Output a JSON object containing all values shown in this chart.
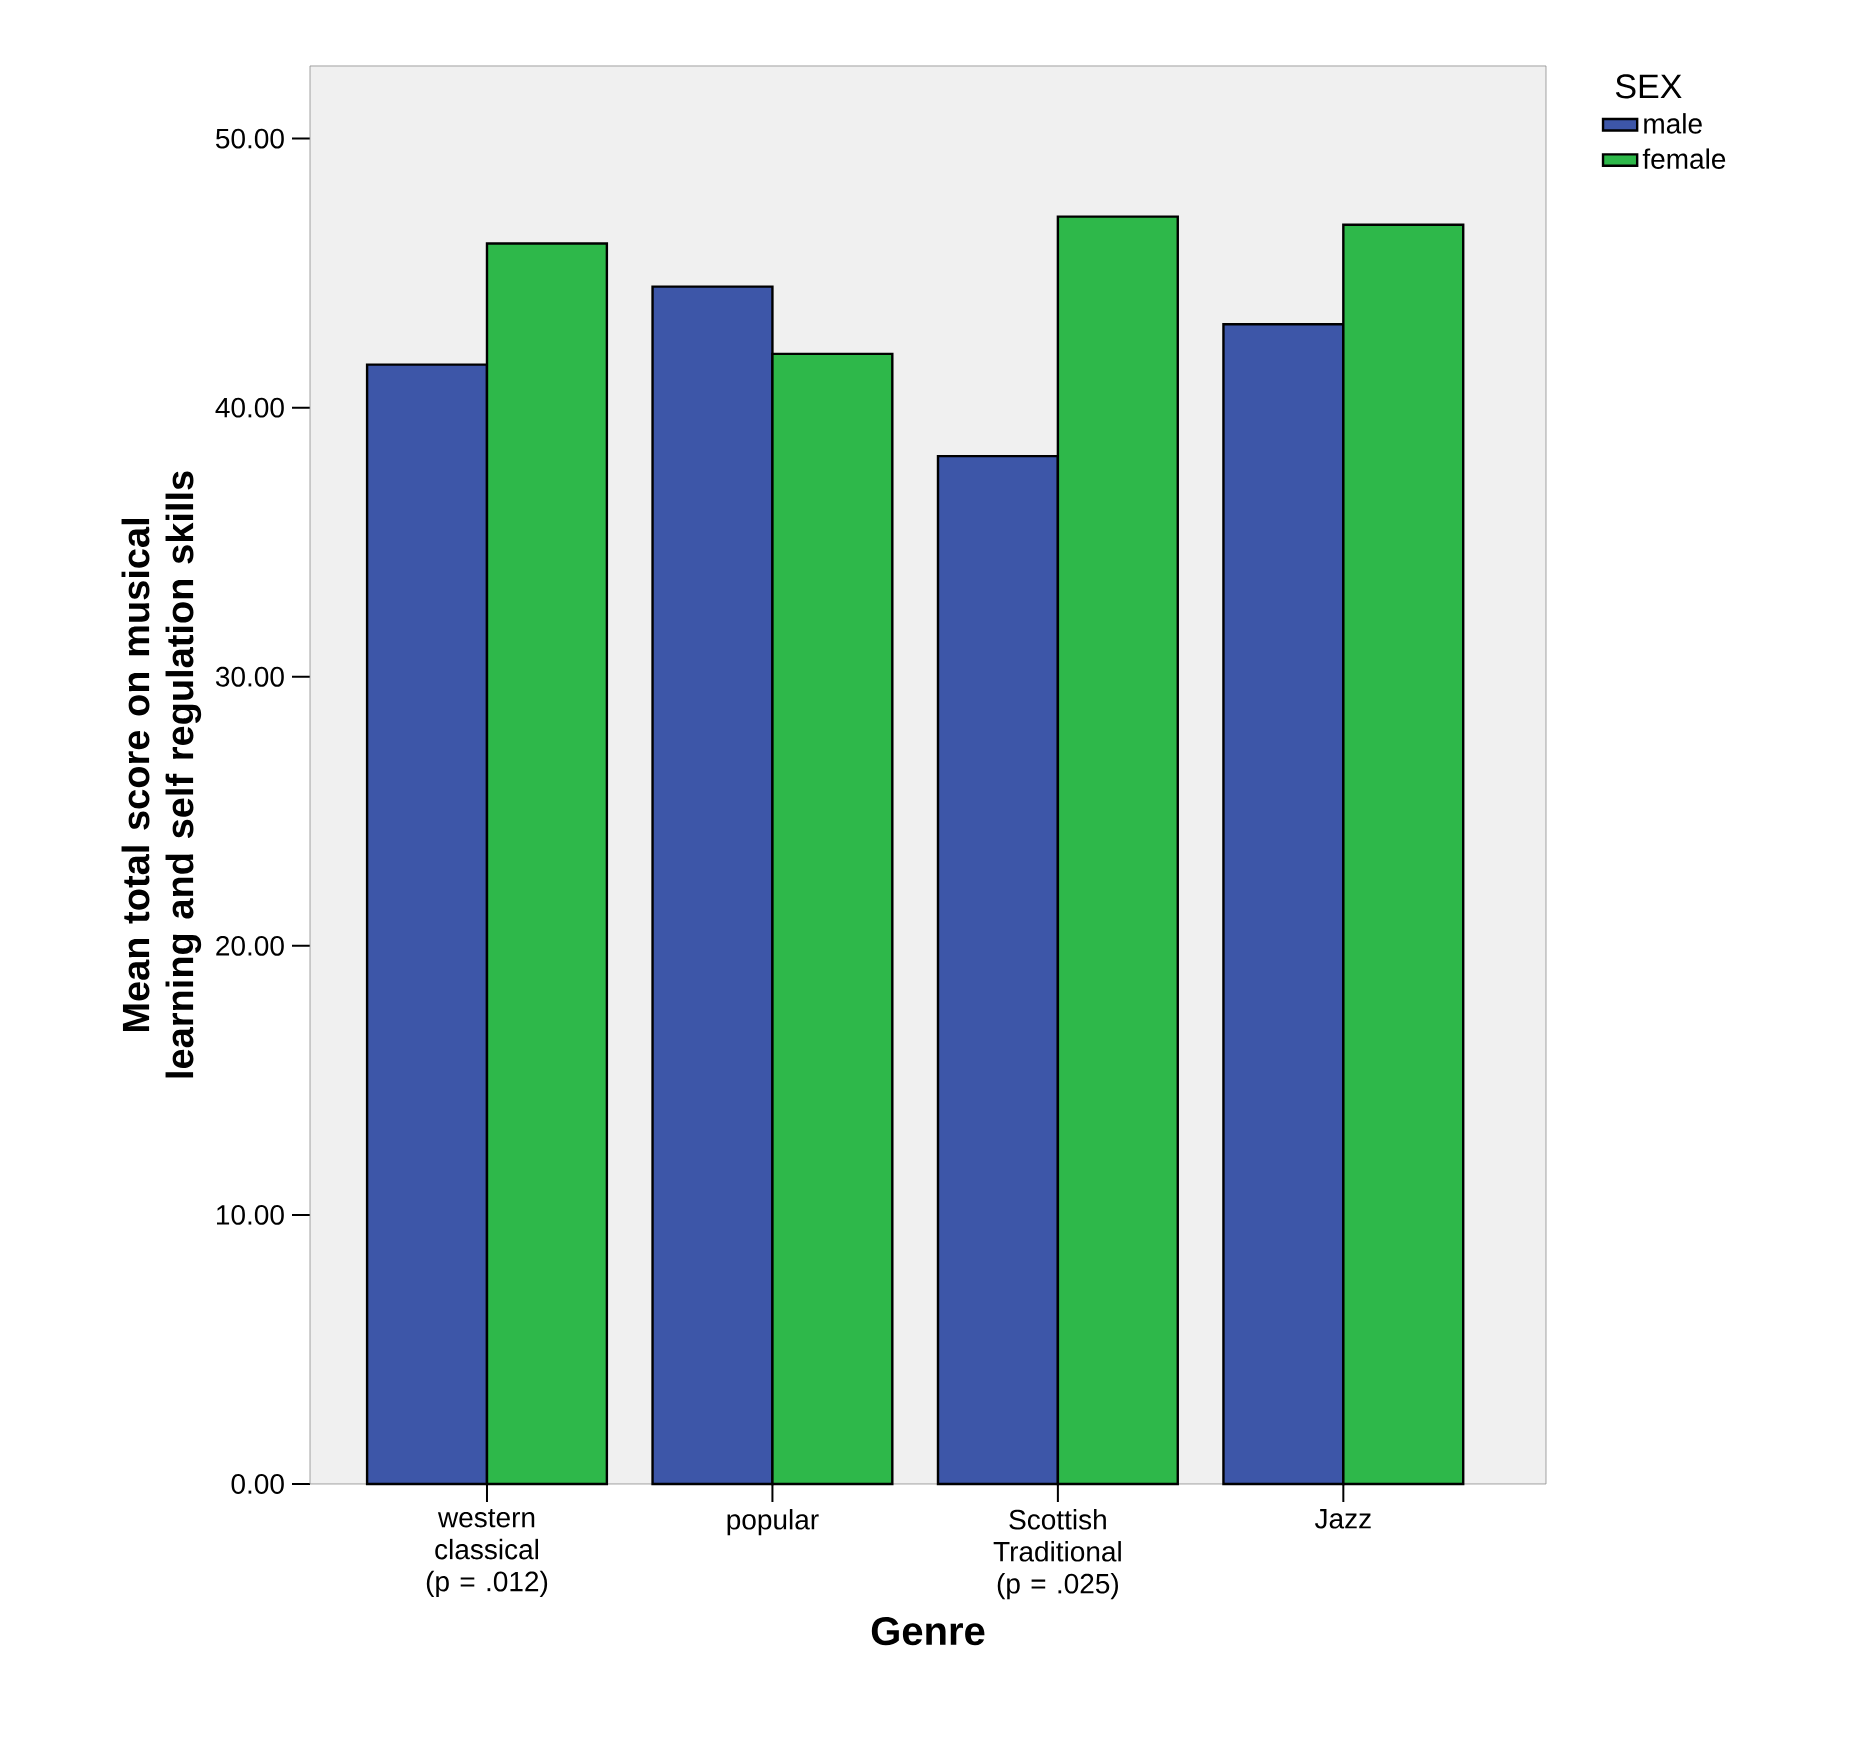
{
  "chart_data": {
    "type": "bar",
    "xlabel": "Genre",
    "ylabel": "Mean total score on musical learning and self regulation skills",
    "legend_title": "SEX",
    "categories": [
      "western classical (p = .012)",
      "popular",
      "Scottish Traditional (p = .025)",
      "Jazz"
    ],
    "series": [
      {
        "name": "male",
        "color": "#3d56a8",
        "values": [
          41.6,
          44.5,
          38.2,
          43.1
        ]
      },
      {
        "name": "female",
        "color": "#2eb84a",
        "values": [
          46.1,
          42.0,
          47.1,
          46.8
        ]
      }
    ],
    "ylim": [
      0,
      52.7
    ],
    "yticks": [
      {
        "value": 0,
        "label": "0.00"
      },
      {
        "value": 10,
        "label": "10.00"
      },
      {
        "value": 20,
        "label": "20.00"
      },
      {
        "value": 30,
        "label": "30.00"
      },
      {
        "value": 40,
        "label": "40.00"
      },
      {
        "value": 50,
        "label": "50.00"
      }
    ],
    "grid": false,
    "legend": "top right"
  }
}
